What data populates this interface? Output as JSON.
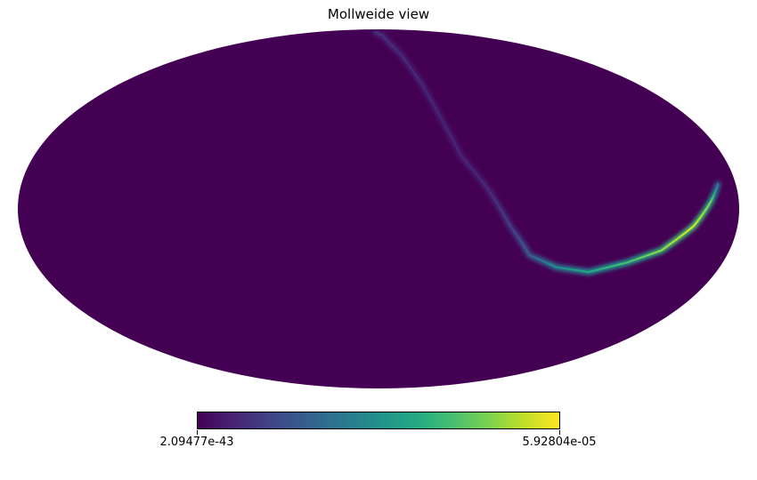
{
  "title": "Mollweide view",
  "chart_data": {
    "type": "heatmap",
    "projection": "mollweide",
    "title": "Mollweide view",
    "colormap": "viridis",
    "colorbar": {
      "min": 2.09477e-43,
      "max": 5.92804e-05,
      "min_label": "2.09477e-43",
      "max_label": "5.92804e-05",
      "orientation": "horizontal",
      "placement": "bottom"
    },
    "background_color": "#440154",
    "feature": {
      "description_type": "arc",
      "points_lonlat": [
        [
          9,
          86
        ],
        [
          -8,
          83
        ],
        [
          -22,
          70
        ],
        [
          -30,
          54
        ],
        [
          -36,
          38
        ],
        [
          -43,
          22
        ],
        [
          -55,
          8
        ],
        [
          -66,
          -7
        ],
        [
          -78,
          -19
        ],
        [
          -94,
          -24
        ],
        [
          -112,
          -26
        ],
        [
          -130,
          -22
        ],
        [
          -145,
          -17
        ],
        [
          -158,
          -7
        ],
        [
          -166,
          3
        ],
        [
          -171,
          10
        ]
      ],
      "intensity": [
        0.15,
        0.14,
        0.12,
        0.11,
        0.1,
        0.1,
        0.12,
        0.18,
        0.3,
        0.5,
        0.6,
        0.7,
        0.85,
        0.95,
        0.8,
        0.4
      ]
    }
  }
}
